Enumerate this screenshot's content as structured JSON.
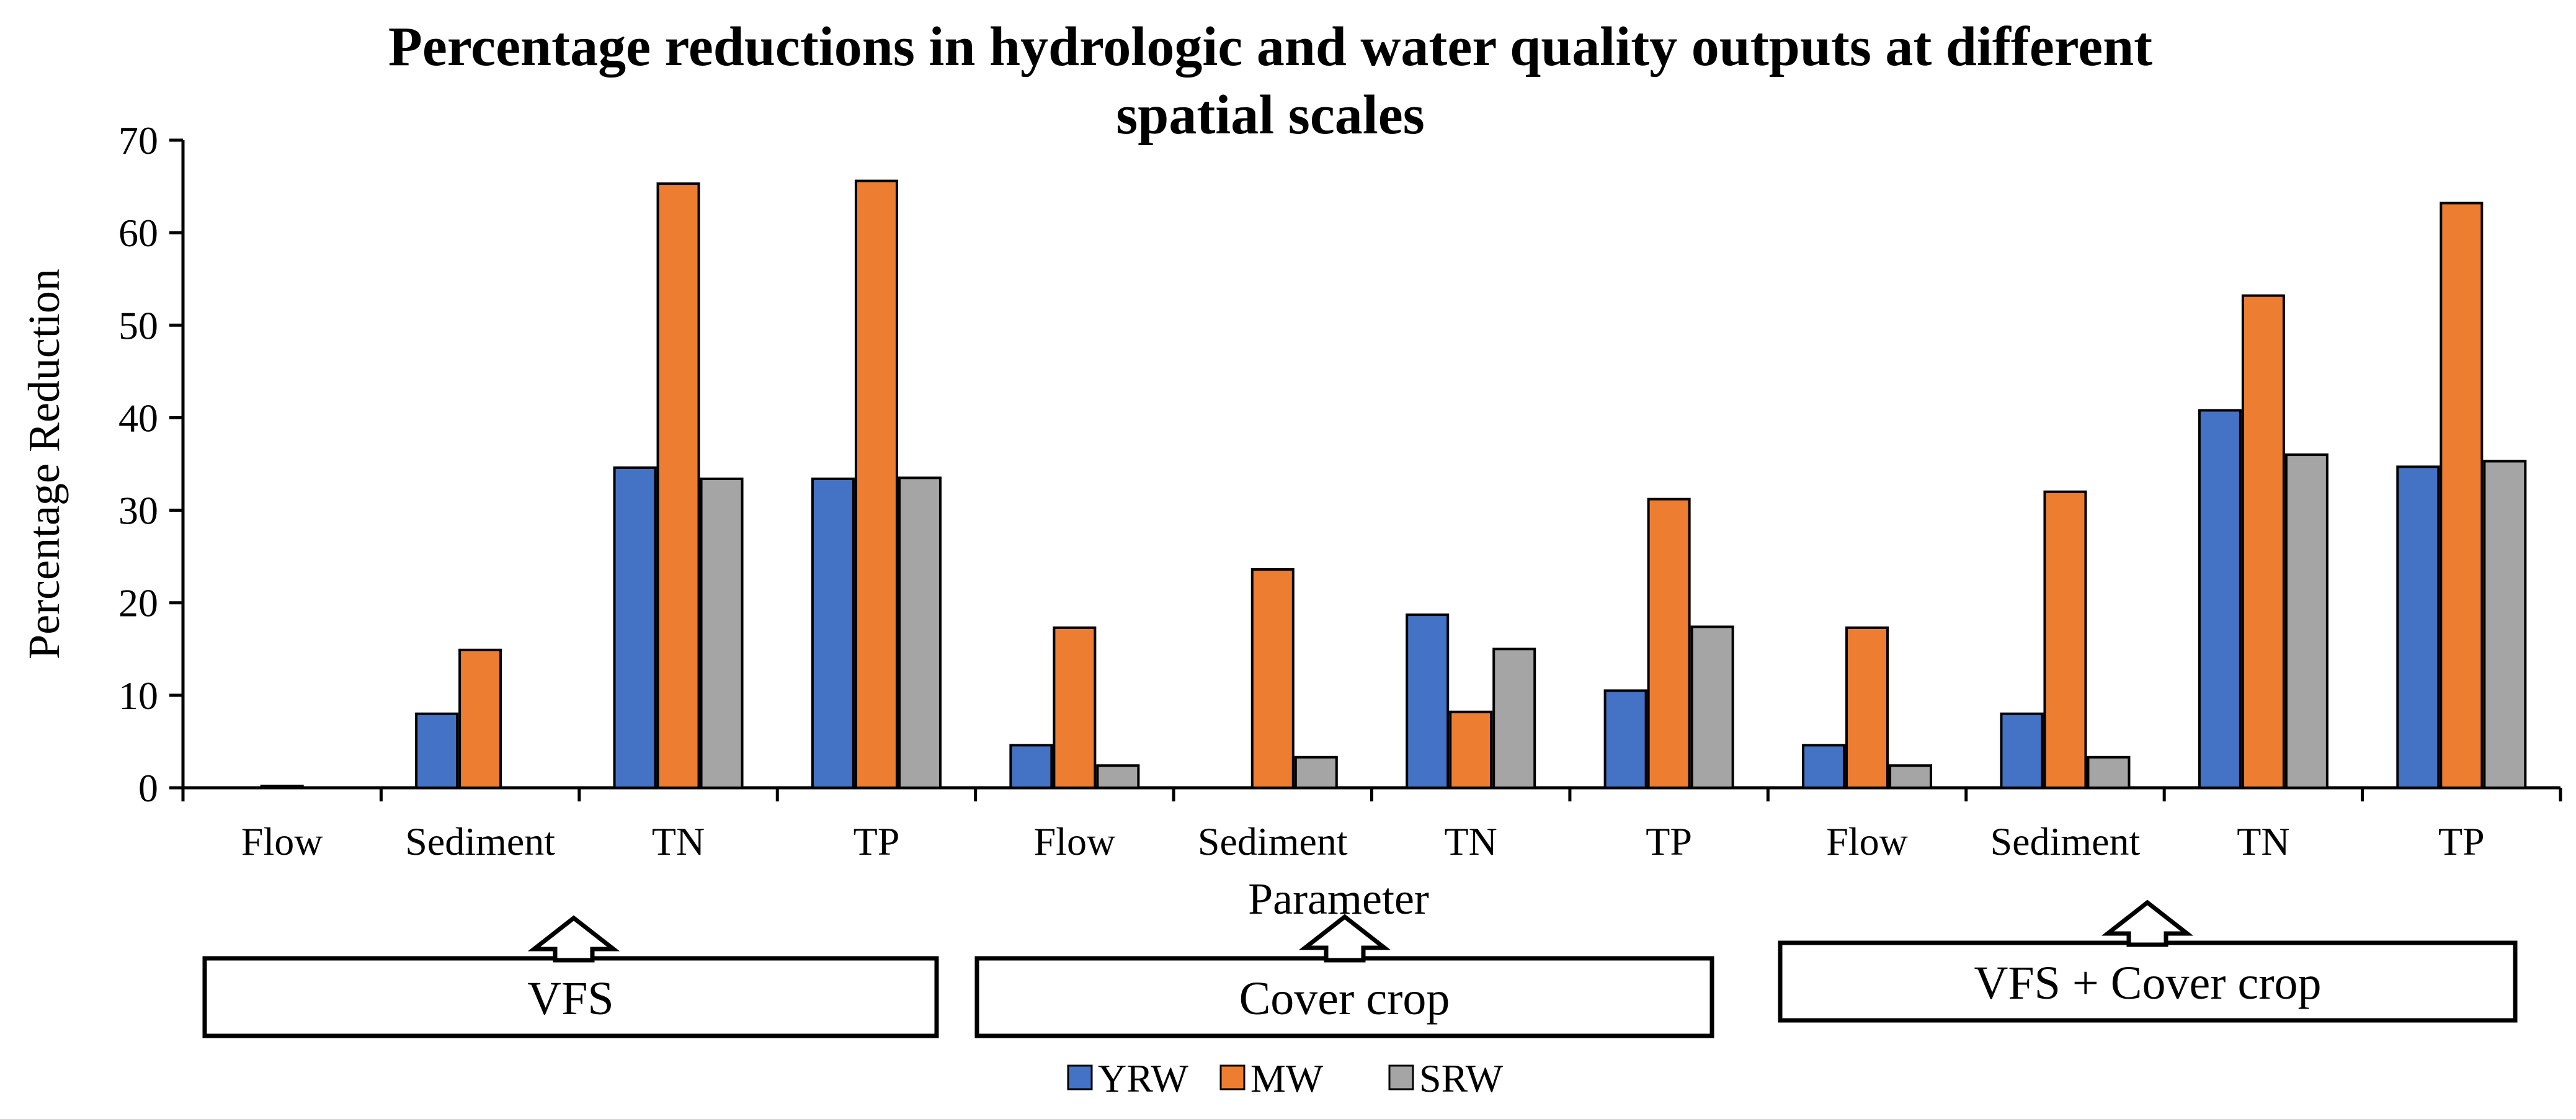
{
  "chart_data": {
    "type": "bar",
    "title": "Percentage reductions in hydrologic and water quality outputs at different spatial scales",
    "title_lines": [
      "Percentage reductions in hydrologic and water quality outputs at different",
      "spatial scales"
    ],
    "xlabel": "Parameter",
    "ylabel": "Percentage Reduction",
    "ylim": [
      0,
      70
    ],
    "yticks": [
      0,
      10,
      20,
      30,
      40,
      50,
      60,
      70
    ],
    "gridlines": false,
    "legend_position": "bottom-center",
    "categories": [
      "Flow",
      "Sediment",
      "TN",
      "TP",
      "Flow",
      "Sediment",
      "TN",
      "TP",
      "Flow",
      "Sediment",
      "TN",
      "TP"
    ],
    "series": [
      {
        "name": "YRW",
        "color": "#4472C4",
        "values": [
          0,
          8,
          34.6,
          33.4,
          4.6,
          0,
          18.7,
          10.5,
          4.6,
          8,
          40.8,
          34.7
        ]
      },
      {
        "name": "MW",
        "color": "#ED7D31",
        "values": [
          0.2,
          14.9,
          65.3,
          65.6,
          17.3,
          23.6,
          8.2,
          31.2,
          17.3,
          32,
          53.2,
          63.2
        ]
      },
      {
        "name": "SRW",
        "color": "#A5A5A5",
        "values": [
          0,
          0,
          33.4,
          33.5,
          2.4,
          3.3,
          15,
          17.4,
          2.4,
          3.3,
          36,
          35.3
        ]
      }
    ],
    "groups": [
      {
        "label": "VFS"
      },
      {
        "label": "Cover crop"
      },
      {
        "label": "VFS + Cover crop"
      }
    ]
  }
}
